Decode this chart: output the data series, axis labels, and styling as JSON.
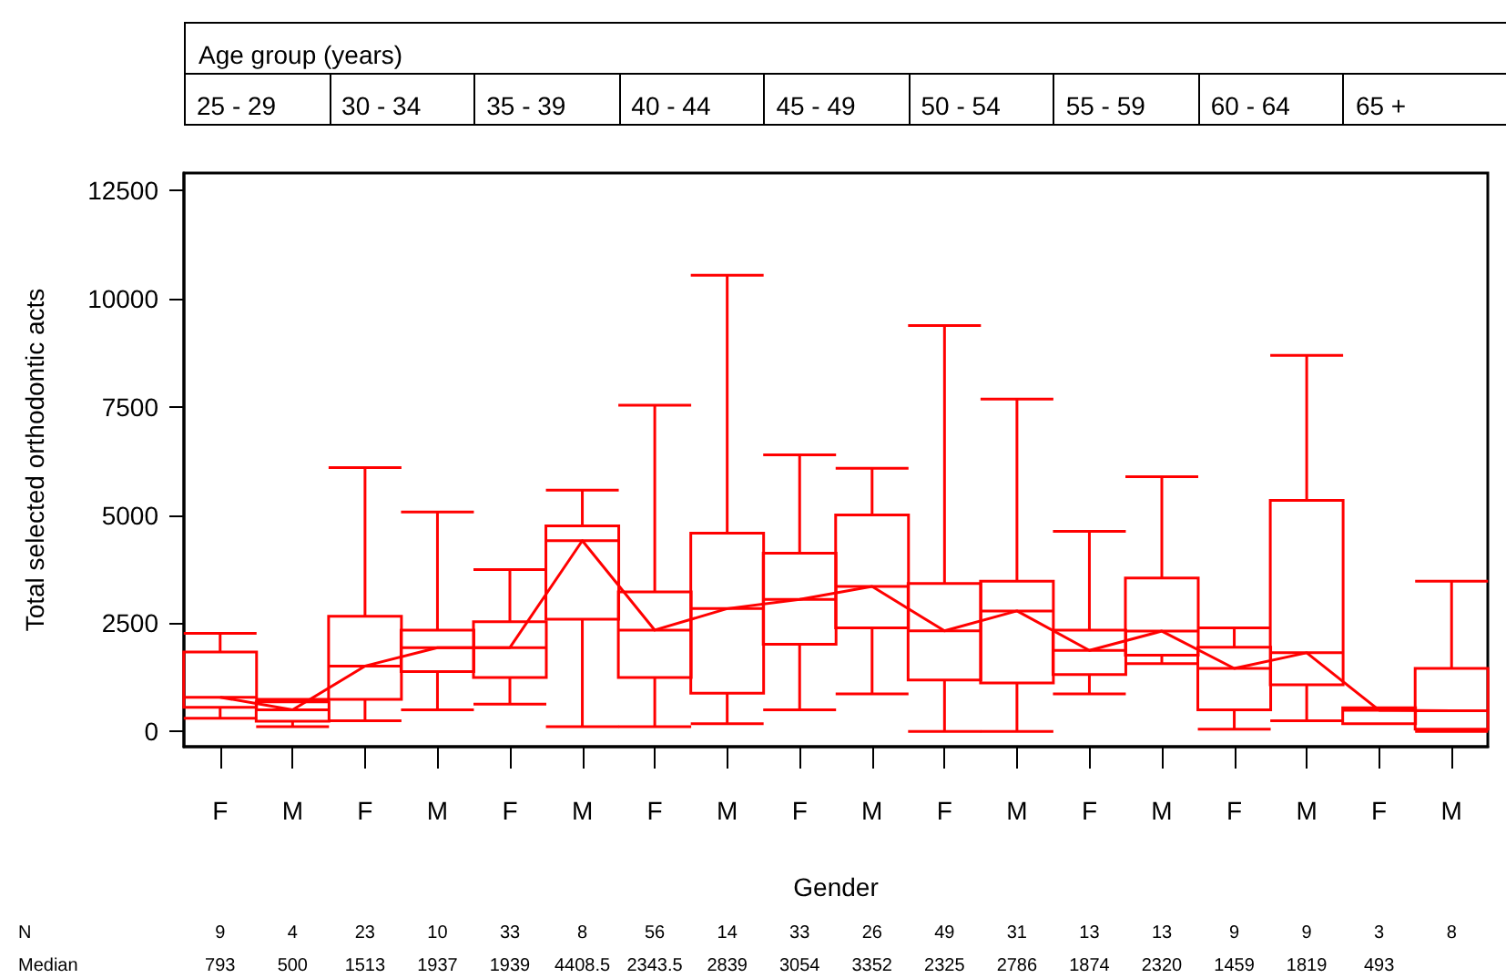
{
  "chart_data": {
    "type": "box",
    "xlabel": "Gender",
    "ylabel": "Total selected orthodontic acts",
    "x2label": "Age group (years)",
    "categories": [
      "F",
      "M",
      "F",
      "M",
      "F",
      "M",
      "F",
      "M",
      "F",
      "M",
      "F",
      "M",
      "F",
      "M",
      "F",
      "M",
      "F",
      "M"
    ],
    "series": [
      {
        "color": "#ff0000",
        "boxes": [
          {
            "low": 308,
            "q1": 560,
            "median": 793,
            "q3": 1836,
            "high": 2270
          },
          {
            "low": 112,
            "q1": 238,
            "median": 500,
            "q3": 687,
            "high": 743
          },
          {
            "low": 252,
            "q1": 743,
            "median": 1513,
            "q3": 2663,
            "high": 6096
          },
          {
            "low": 504,
            "q1": 1387,
            "median": 1937,
            "q3": 2340,
            "high": 5073
          },
          {
            "low": 631,
            "q1": 1247,
            "median": 1939,
            "q3": 2536,
            "high": 3742
          },
          {
            "low": 112,
            "q1": 2592,
            "median": 4408.5,
            "q3": 4751,
            "high": 5577
          },
          {
            "low": 112,
            "q1": 1247,
            "median": 2343.5,
            "q3": 3223,
            "high": 7539
          },
          {
            "low": 182,
            "q1": 883,
            "median": 2839,
            "q3": 4582,
            "high": 10538
          },
          {
            "low": 504,
            "q1": 2018,
            "median": 3054,
            "q3": 4120,
            "high": 6390
          },
          {
            "low": 869,
            "q1": 2396,
            "median": 3352,
            "q3": 5003,
            "high": 6082
          },
          {
            "low": 0,
            "q1": 1191,
            "median": 2325,
            "q3": 3419,
            "high": 9375
          },
          {
            "low": 0,
            "q1": 1121,
            "median": 2786,
            "q3": 3475,
            "high": 7679
          },
          {
            "low": 869,
            "q1": 1317,
            "median": 1874,
            "q3": 2340,
            "high": 4624
          },
          {
            "low": 1570,
            "q1": 1766,
            "median": 2320,
            "q3": 3545,
            "high": 5886
          },
          {
            "low": 56,
            "q1": 504,
            "median": 1459,
            "q3": 1948,
            "high": 2396
          },
          {
            "low": 252,
            "q1": 1079,
            "median": 1819,
            "q3": 5339,
            "high": 8688
          },
          {
            "low": 182,
            "q1": 182,
            "median": 493,
            "q3": 547,
            "high": 547
          },
          {
            "low": 0,
            "q1": 56,
            "median": 480,
            "q3": 1457,
            "high": 3475
          }
        ]
      },
      {
        "type": "line",
        "color": "#ff0000",
        "values": [
          793,
          500,
          1513,
          1937,
          1939,
          4408.5,
          2343.5,
          2839,
          3054,
          3352,
          2325,
          2786,
          1874,
          2320,
          1459,
          1819,
          493,
          480
        ],
        "value_labels": [
          "793",
          "500",
          "1513",
          "1937",
          "1939",
          "4408.5",
          "2343.5",
          "2839",
          "3054",
          "3352",
          "2325",
          "2786",
          "1874",
          "2320",
          "1459",
          "1819",
          "493",
          null
        ]
      }
    ],
    "ylim": [
      -350,
      12900
    ],
    "yticks": [
      0,
      2500,
      5000,
      7500,
      10000,
      12500
    ],
    "grid": false,
    "marker": "none",
    "line_style": "solid",
    "annotations": [
      "25 - 29",
      "30 - 34",
      "35 - 39",
      "40 - 44",
      "45 - 49",
      "50 - 54",
      "55 - 59",
      "60 - 64",
      "65 +",
      "N",
      "9",
      "4",
      "23",
      "10",
      "33",
      "8",
      "56",
      "14",
      "33",
      "26",
      "49",
      "31",
      "13",
      "13",
      "9",
      "9",
      "3",
      "8",
      "Median"
    ]
  }
}
